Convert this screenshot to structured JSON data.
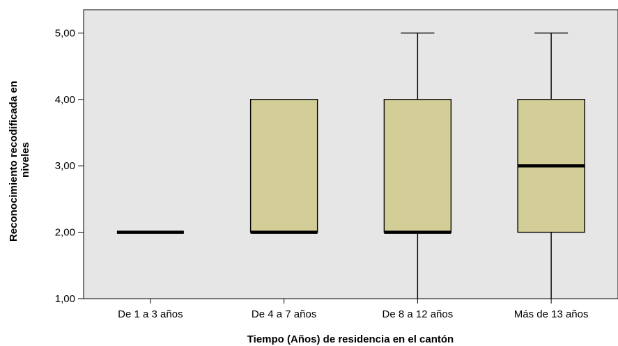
{
  "chart_data": {
    "type": "boxplot",
    "xlabel": "Tiempo (Años) de residencia en el cantón",
    "ylabel_lines": [
      "Reconocimiento recodificada en",
      "niveles"
    ],
    "ylim": [
      1,
      5.35
    ],
    "yticks": [
      1,
      2,
      3,
      4,
      5
    ],
    "ytick_labels": [
      "1,00",
      "2,00",
      "3,00",
      "4,00",
      "5,00"
    ],
    "categories": [
      "De 1 a 3 años",
      "De 4 a 7 años",
      "De 8 a 12 años",
      "Más de 13 años"
    ],
    "boxes": [
      {
        "category": "De 1 a 3 años",
        "min": 2,
        "q1": 2,
        "median": 2,
        "q3": 2,
        "max": 2
      },
      {
        "category": "De 4 a 7 años",
        "min": 2,
        "q1": 2,
        "median": 2,
        "q3": 4,
        "max": 4
      },
      {
        "category": "De 8 a 12 años",
        "min": 1,
        "q1": 2,
        "median": 2,
        "q3": 4,
        "max": 5
      },
      {
        "category": "Más de 13 años",
        "min": 1,
        "q1": 2,
        "median": 3,
        "q3": 4,
        "max": 5
      }
    ],
    "grid": false,
    "colors": {
      "plot_background": "#e6e6e6",
      "box_fill": "#d3ce97",
      "line": "#000000"
    }
  }
}
